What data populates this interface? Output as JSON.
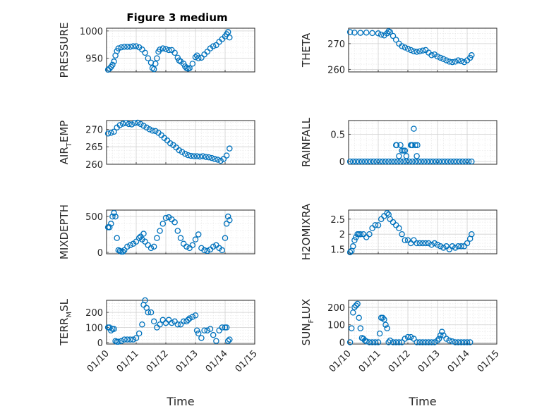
{
  "title": "Figure 3 medium",
  "chart_data": [
    {
      "type": "scatter",
      "id": "pressure",
      "ylabel": "PRESSURE",
      "ylim": [
        925,
        1005
      ],
      "yticks": [
        950,
        1000
      ],
      "xlim": [
        0,
        5
      ],
      "x_ticklabels": false,
      "x": [
        0.05,
        0.1,
        0.15,
        0.2,
        0.25,
        0.3,
        0.35,
        0.4,
        0.5,
        0.6,
        0.7,
        0.8,
        0.9,
        1.0,
        1.1,
        1.2,
        1.3,
        1.4,
        1.5,
        1.55,
        1.6,
        1.65,
        1.7,
        1.75,
        1.8,
        1.9,
        2.0,
        2.1,
        2.2,
        2.3,
        2.4,
        2.45,
        2.5,
        2.6,
        2.65,
        2.7,
        2.75,
        2.8,
        2.9,
        3.0,
        3.05,
        3.1,
        3.2,
        3.3,
        3.4,
        3.5,
        3.6,
        3.7,
        3.8,
        3.9,
        4.0,
        4.05,
        4.1,
        4.15
      ],
      "y": [
        929,
        931,
        934,
        938,
        944,
        955,
        963,
        968,
        970,
        971,
        971,
        971,
        972,
        972,
        970,
        966,
        960,
        950,
        942,
        932,
        930,
        940,
        950,
        962,
        966,
        968,
        967,
        965,
        965,
        960,
        951,
        946,
        944,
        940,
        935,
        932,
        931,
        932,
        940,
        952,
        955,
        950,
        951,
        957,
        962,
        968,
        972,
        974,
        980,
        985,
        990,
        994,
        998,
        988
      ]
    },
    {
      "type": "scatter",
      "id": "theta",
      "ylabel": "THETA",
      "ylim": [
        259,
        276
      ],
      "yticks": [
        260,
        270
      ],
      "xlim": [
        0,
        5
      ],
      "x_ticklabels": false,
      "x": [
        0.05,
        0.2,
        0.4,
        0.6,
        0.8,
        1.0,
        1.1,
        1.2,
        1.3,
        1.35,
        1.4,
        1.5,
        1.6,
        1.7,
        1.8,
        1.9,
        2.0,
        2.1,
        2.2,
        2.3,
        2.4,
        2.5,
        2.6,
        2.7,
        2.8,
        2.9,
        3.0,
        3.1,
        3.2,
        3.3,
        3.4,
        3.5,
        3.6,
        3.7,
        3.8,
        3.9,
        4.0,
        4.1,
        4.15
      ],
      "y": [
        274.5,
        274.3,
        274.2,
        274.3,
        274.1,
        274.0,
        273.5,
        273.2,
        274.0,
        274.8,
        274.5,
        273.0,
        271.5,
        270.0,
        269.0,
        268.5,
        268.0,
        267.5,
        267.0,
        266.8,
        267.0,
        267.3,
        267.5,
        266.5,
        265.5,
        265.8,
        265.0,
        264.5,
        264.0,
        263.5,
        263.0,
        262.8,
        263.0,
        263.5,
        263.2,
        262.8,
        263.5,
        264.5,
        265.5
      ]
    },
    {
      "type": "scatter",
      "id": "air_temp",
      "ylabel": "AIR",
      "ylabel_sub": "T",
      "ylabel_suffix": "EMP",
      "ylim": [
        260,
        272.5
      ],
      "yticks": [
        260,
        265,
        270
      ],
      "xlim": [
        0,
        5
      ],
      "x_ticklabels": false,
      "x": [
        0.05,
        0.15,
        0.25,
        0.35,
        0.45,
        0.55,
        0.65,
        0.75,
        0.85,
        0.95,
        1.05,
        1.15,
        1.25,
        1.35,
        1.45,
        1.55,
        1.65,
        1.75,
        1.85,
        1.95,
        2.05,
        2.15,
        2.25,
        2.35,
        2.45,
        2.55,
        2.65,
        2.75,
        2.85,
        2.95,
        3.05,
        3.15,
        3.25,
        3.35,
        3.45,
        3.55,
        3.65,
        3.75,
        3.85,
        3.95,
        4.05,
        4.15
      ],
      "y": [
        268.8,
        269.0,
        269.3,
        270.5,
        271.2,
        271.6,
        271.8,
        271.5,
        271.4,
        271.8,
        271.9,
        271.5,
        271.0,
        270.5,
        270.0,
        269.6,
        269.5,
        269.0,
        268.3,
        267.5,
        266.8,
        266.0,
        265.5,
        264.8,
        264.0,
        263.5,
        263.0,
        262.6,
        262.4,
        262.3,
        262.3,
        262.2,
        262.3,
        262.1,
        262.0,
        261.8,
        261.5,
        261.3,
        261.0,
        261.5,
        262.5,
        264.5
      ]
    },
    {
      "type": "scatter",
      "id": "rainfall",
      "ylabel": "RAINFALL",
      "ylim": [
        -0.05,
        0.75
      ],
      "yticks": [
        0,
        0.5
      ],
      "xlim": [
        0,
        5
      ],
      "x_ticklabels": false,
      "x": [
        0.05,
        0.15,
        0.25,
        0.35,
        0.45,
        0.55,
        0.65,
        0.75,
        0.85,
        0.95,
        1.05,
        1.15,
        1.25,
        1.35,
        1.45,
        1.55,
        1.65,
        1.75,
        1.85,
        1.95,
        2.05,
        2.15,
        2.25,
        2.35,
        2.45,
        2.55,
        2.65,
        2.75,
        2.85,
        2.95,
        3.05,
        3.15,
        3.25,
        3.35,
        3.45,
        3.55,
        3.65,
        3.75,
        3.85,
        3.95,
        4.05,
        4.15,
        1.6,
        1.62,
        1.7,
        1.8,
        1.85,
        1.9,
        1.95,
        1.75,
        2.1,
        2.12,
        2.2,
        2.25,
        2.3,
        2.15,
        2.32
      ],
      "y": [
        0,
        0,
        0,
        0,
        0,
        0,
        0,
        0,
        0,
        0,
        0,
        0,
        0,
        0,
        0,
        0,
        0,
        0,
        0,
        0,
        0,
        0,
        0,
        0,
        0,
        0,
        0,
        0,
        0,
        0,
        0,
        0,
        0,
        0,
        0,
        0,
        0,
        0,
        0,
        0,
        0,
        0,
        0.3,
        0.3,
        0.1,
        0.2,
        0.2,
        0.2,
        0.1,
        0.3,
        0.3,
        0.3,
        0.6,
        0.3,
        0.1,
        0.3,
        0.3
      ]
    },
    {
      "type": "scatter",
      "id": "mixdepth",
      "ylabel": "MIXDEPTH",
      "ylim": [
        -20,
        590
      ],
      "yticks": [
        0,
        500
      ],
      "xlim": [
        0,
        5
      ],
      "x_ticklabels": false,
      "x": [
        0.05,
        0.1,
        0.15,
        0.2,
        0.25,
        0.3,
        0.35,
        0.4,
        0.45,
        0.5,
        0.55,
        0.6,
        0.7,
        0.8,
        0.9,
        1.0,
        1.1,
        1.15,
        1.2,
        1.25,
        1.3,
        1.4,
        1.5,
        1.6,
        1.7,
        1.8,
        1.9,
        2.0,
        2.1,
        2.2,
        2.3,
        2.4,
        2.5,
        2.6,
        2.7,
        2.8,
        2.9,
        3.0,
        3.1,
        3.2,
        3.3,
        3.4,
        3.5,
        3.6,
        3.7,
        3.8,
        3.9,
        4.0,
        4.05,
        4.1,
        4.15
      ],
      "y": [
        350,
        350,
        400,
        500,
        550,
        500,
        200,
        30,
        20,
        10,
        10,
        30,
        80,
        100,
        120,
        150,
        200,
        220,
        180,
        260,
        150,
        100,
        60,
        80,
        200,
        300,
        400,
        480,
        490,
        460,
        420,
        300,
        200,
        120,
        80,
        60,
        100,
        180,
        250,
        60,
        30,
        20,
        40,
        80,
        100,
        60,
        30,
        200,
        400,
        500,
        450
      ]
    },
    {
      "type": "scatter",
      "id": "h2omixra",
      "ylabel": "H2OMIXRA",
      "ylim": [
        1.35,
        2.8
      ],
      "yticks": [
        1.5,
        2,
        2.5
      ],
      "xlim": [
        0,
        5
      ],
      "x_ticklabels": false,
      "x": [
        0.05,
        0.1,
        0.15,
        0.2,
        0.25,
        0.3,
        0.35,
        0.4,
        0.5,
        0.6,
        0.7,
        0.8,
        0.9,
        1.0,
        1.1,
        1.2,
        1.3,
        1.35,
        1.4,
        1.5,
        1.6,
        1.7,
        1.8,
        1.9,
        2.0,
        2.1,
        2.2,
        2.3,
        2.4,
        2.5,
        2.6,
        2.7,
        2.8,
        2.9,
        3.0,
        3.1,
        3.2,
        3.3,
        3.4,
        3.5,
        3.6,
        3.7,
        3.8,
        3.9,
        4.0,
        4.1,
        4.15
      ],
      "y": [
        1.4,
        1.45,
        1.6,
        1.8,
        1.9,
        2.0,
        2.0,
        2.0,
        2.0,
        1.9,
        2.0,
        2.2,
        2.3,
        2.3,
        2.5,
        2.6,
        2.7,
        2.65,
        2.5,
        2.4,
        2.3,
        2.2,
        2.0,
        1.8,
        1.8,
        1.7,
        1.8,
        1.7,
        1.7,
        1.7,
        1.7,
        1.7,
        1.65,
        1.7,
        1.65,
        1.6,
        1.55,
        1.6,
        1.5,
        1.6,
        1.55,
        1.6,
        1.6,
        1.6,
        1.7,
        1.85,
        2.0
      ]
    },
    {
      "type": "scatter",
      "id": "terr_msl",
      "ylabel": "TERR",
      "ylabel_sub": "M",
      "ylabel_suffix": "SL",
      "ylim": [
        -10,
        280
      ],
      "yticks": [
        0,
        100,
        200
      ],
      "xlim": [
        0,
        5
      ],
      "xticks": [
        0,
        1,
        2,
        3,
        4,
        5
      ],
      "xticklabels": [
        "01/10",
        "01/11",
        "01/12",
        "01/13",
        "01/14",
        "01/15"
      ],
      "xlabel": "Time",
      "x": [
        0.05,
        0.1,
        0.15,
        0.2,
        0.25,
        0.3,
        0.35,
        0.4,
        0.5,
        0.6,
        0.7,
        0.8,
        0.9,
        1.0,
        1.1,
        1.2,
        1.25,
        1.3,
        1.35,
        1.4,
        1.5,
        1.6,
        1.7,
        1.8,
        1.9,
        2.0,
        2.1,
        2.2,
        2.3,
        2.4,
        2.5,
        2.6,
        2.7,
        2.75,
        2.8,
        2.9,
        3.0,
        3.05,
        3.1,
        3.2,
        3.3,
        3.4,
        3.5,
        3.6,
        3.7,
        3.8,
        3.9,
        4.0,
        4.05,
        4.1,
        4.15
      ],
      "y": [
        100,
        100,
        80,
        90,
        90,
        10,
        5,
        5,
        10,
        20,
        20,
        20,
        20,
        30,
        60,
        120,
        250,
        280,
        230,
        200,
        200,
        140,
        100,
        120,
        150,
        130,
        150,
        130,
        140,
        120,
        120,
        140,
        140,
        150,
        160,
        170,
        180,
        80,
        60,
        30,
        80,
        80,
        90,
        50,
        10,
        80,
        100,
        100,
        100,
        10,
        20
      ]
    },
    {
      "type": "scatter",
      "id": "sun_flux",
      "ylabel": "SUN",
      "ylabel_sub": "F",
      "ylabel_suffix": "LUX",
      "ylim": [
        -10,
        240
      ],
      "yticks": [
        0,
        100,
        200
      ],
      "xlim": [
        0,
        5
      ],
      "xticks": [
        0,
        1,
        2,
        3,
        4,
        5
      ],
      "xticklabels": [
        "01/10",
        "01/11",
        "01/12",
        "01/13",
        "01/14",
        "01/15"
      ],
      "xlabel": "Time",
      "x": [
        0.05,
        0.1,
        0.15,
        0.2,
        0.25,
        0.3,
        0.35,
        0.4,
        0.45,
        0.5,
        0.55,
        0.6,
        0.7,
        0.8,
        0.9,
        1.0,
        1.05,
        1.1,
        1.15,
        1.2,
        1.25,
        1.3,
        1.35,
        1.4,
        1.5,
        1.6,
        1.7,
        1.8,
        1.9,
        2.0,
        2.1,
        2.2,
        2.3,
        2.4,
        2.5,
        2.6,
        2.7,
        2.8,
        2.9,
        3.0,
        3.05,
        3.1,
        3.15,
        3.2,
        3.3,
        3.4,
        3.5,
        3.6,
        3.7,
        3.8,
        3.9,
        4.0,
        4.1
      ],
      "y": [
        0,
        80,
        170,
        200,
        210,
        220,
        140,
        80,
        25,
        20,
        10,
        5,
        0,
        0,
        0,
        0,
        50,
        140,
        140,
        130,
        100,
        80,
        0,
        10,
        0,
        0,
        0,
        0,
        20,
        30,
        30,
        20,
        0,
        0,
        0,
        0,
        0,
        0,
        0,
        10,
        20,
        40,
        60,
        40,
        20,
        10,
        5,
        0,
        0,
        0,
        0,
        0,
        0
      ]
    }
  ]
}
